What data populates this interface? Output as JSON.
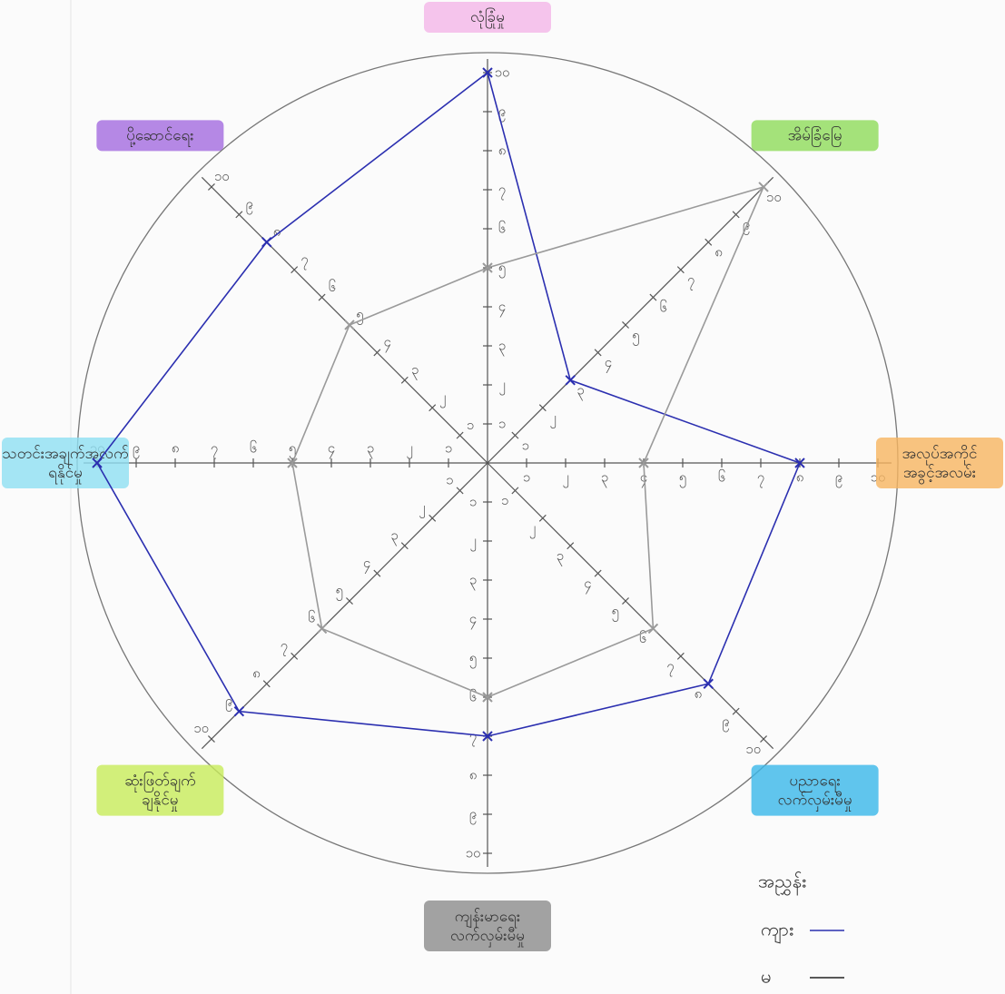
{
  "chart_data": {
    "type": "radar",
    "categories": [
      "လုံခြုံမှု",
      "အိမ်ခြံမြေ",
      "အလုပ်အကိုင် အခွင့်အလမ်း",
      "ပညာရေး လက်လှမ်းမီမှု",
      "ကျန်းမာရေး လက်လှမ်းမီမှု",
      "ဆုံးဖြတ်ချက် ချနိုင်မှု",
      "သတင်းအချက်အလက် ရနိုင်မှု",
      "ပို့ဆောင်ရေး"
    ],
    "category_colors": [
      "#f4b6e8",
      "#8fdc5a",
      "#f7b560",
      "#39b8ea",
      "#8c8c8c",
      "#c8ec5a",
      "#8fe0f2",
      "#a46be0"
    ],
    "series": [
      {
        "name": "ကျား",
        "color": "#2b2fb0",
        "values": [
          10,
          3,
          8,
          8,
          7,
          9,
          10,
          8
        ]
      },
      {
        "name": "မ",
        "color": "#9a9a9a",
        "values": [
          5,
          10,
          4,
          6,
          6,
          6,
          5,
          5
        ]
      }
    ],
    "legend_title": "အညွှန်း",
    "ylim": [
      0,
      10
    ],
    "yticks": [
      {
        "value": 1,
        "label": "၁"
      },
      {
        "value": 2,
        "label": "၂"
      },
      {
        "value": 3,
        "label": "၃"
      },
      {
        "value": 4,
        "label": "၄"
      },
      {
        "value": 5,
        "label": "၅"
      },
      {
        "value": 6,
        "label": "၆"
      },
      {
        "value": 7,
        "label": "၇"
      },
      {
        "value": 8,
        "label": "၈"
      },
      {
        "value": 9,
        "label": "၉"
      },
      {
        "value": 10,
        "label": "၁၀"
      }
    ]
  }
}
